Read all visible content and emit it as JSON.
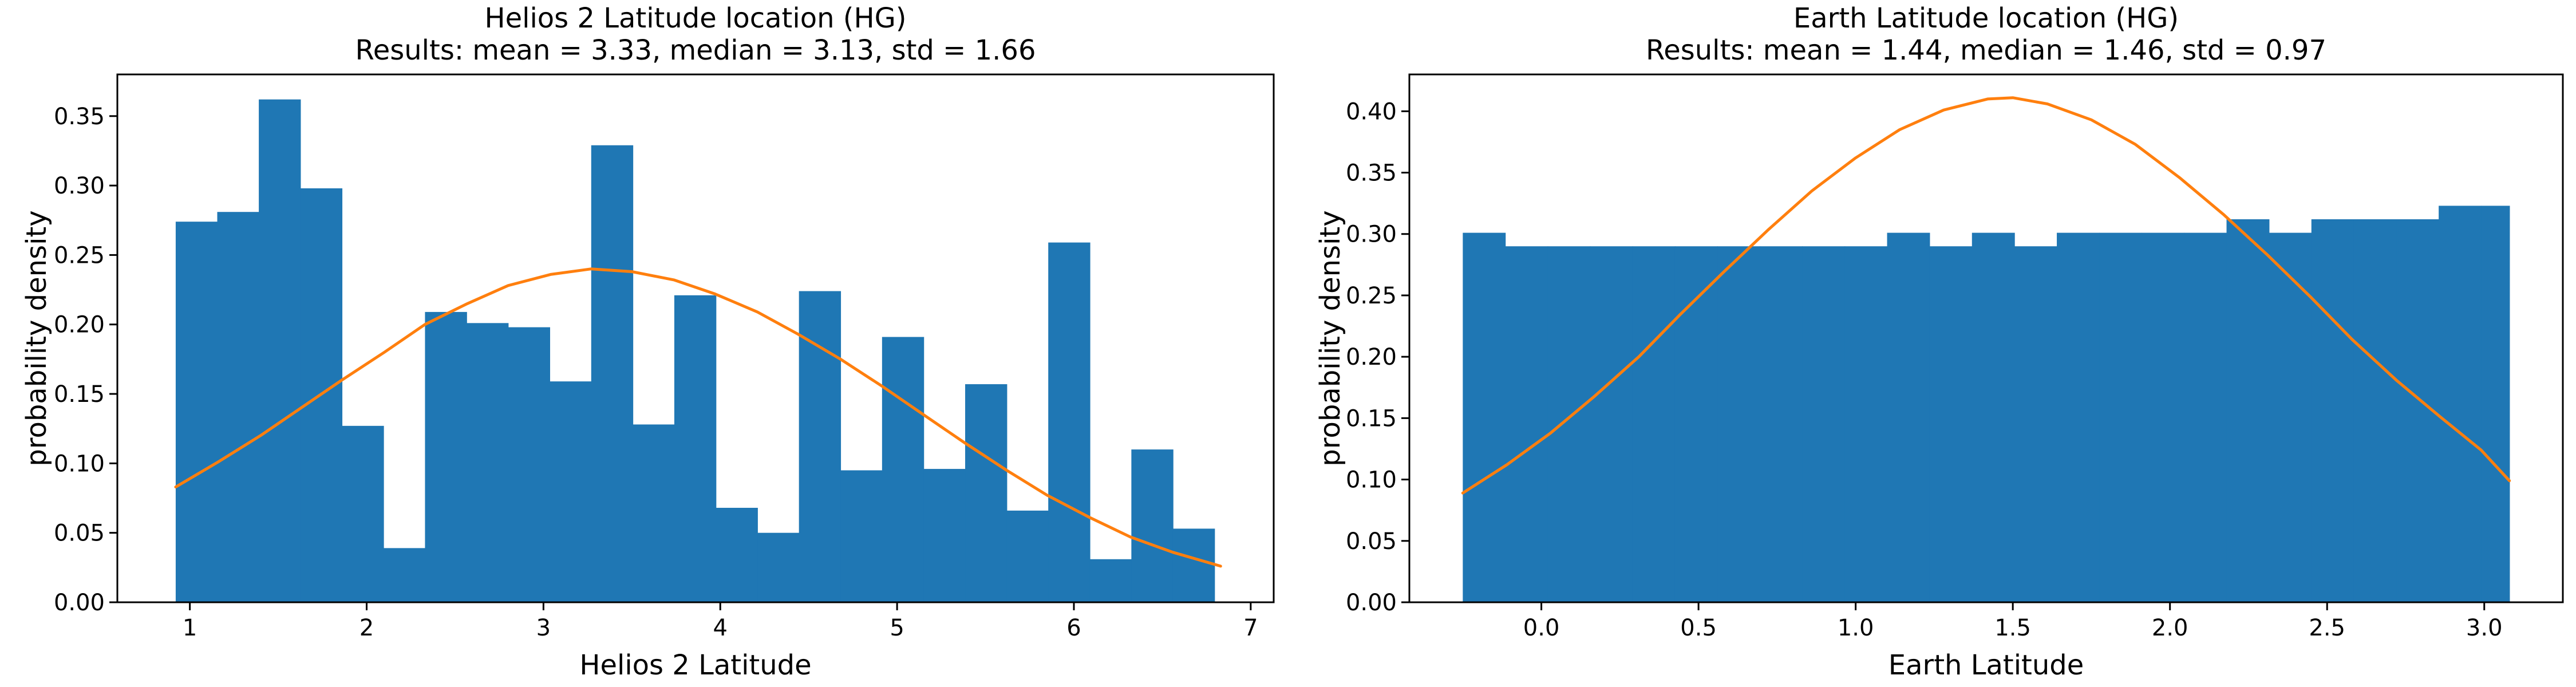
{
  "figure": {
    "background": "#ffffff"
  },
  "chart_data": [
    {
      "type": "bar",
      "title": "Helios 2 Latitude location (HG)",
      "subtitle": "Results: mean = 3.33, median = 3.13, std = 1.66",
      "xlabel": "Helios 2 Latitude",
      "ylabel": "probability density",
      "xlim": [
        0.59,
        7.13
      ],
      "ylim": [
        0,
        0.38
      ],
      "xticks": [
        1,
        2,
        3,
        4,
        5,
        6,
        7
      ],
      "xtick_labels": [
        "1",
        "2",
        "3",
        "4",
        "5",
        "6",
        "7"
      ],
      "yticks": [
        0,
        0.05,
        0.1,
        0.15,
        0.2,
        0.25,
        0.3,
        0.35
      ],
      "ytick_labels": [
        "0.00",
        "0.05",
        "0.10",
        "0.15",
        "0.20",
        "0.25",
        "0.30",
        "0.35"
      ],
      "grid": false,
      "bar_color": "#1f77b4",
      "curve_color": "#ff7f0e",
      "histogram": {
        "bin_edges": [
          0.92,
          1.155,
          1.39,
          1.625,
          1.86,
          2.095,
          2.33,
          2.565,
          2.8,
          3.035,
          3.27,
          3.505,
          3.74,
          3.975,
          4.21,
          4.445,
          4.68,
          4.915,
          5.15,
          5.385,
          5.62,
          5.855,
          6.09,
          6.325,
          6.56,
          6.795
        ],
        "densities": [
          0.274,
          0.281,
          0.362,
          0.298,
          0.127,
          0.039,
          0.209,
          0.201,
          0.198,
          0.159,
          0.329,
          0.128,
          0.221,
          0.068,
          0.05,
          0.224,
          0.095,
          0.191,
          0.096,
          0.157,
          0.066,
          0.259,
          0.031,
          0.11,
          0.053
        ]
      },
      "fit": {
        "x": [
          0.92,
          1.16,
          1.4,
          1.63,
          1.86,
          2.1,
          2.33,
          2.57,
          2.8,
          3.04,
          3.27,
          3.5,
          3.74,
          3.97,
          4.21,
          4.44,
          4.68,
          4.91,
          5.15,
          5.38,
          5.62,
          5.85,
          6.09,
          6.32,
          6.56,
          6.83
        ],
        "y": [
          0.083,
          0.101,
          0.12,
          0.14,
          0.16,
          0.18,
          0.2,
          0.215,
          0.228,
          0.236,
          0.24,
          0.238,
          0.232,
          0.222,
          0.209,
          0.193,
          0.175,
          0.156,
          0.135,
          0.115,
          0.095,
          0.077,
          0.061,
          0.047,
          0.036,
          0.026
        ]
      }
    },
    {
      "type": "bar",
      "title": "Earth Latitude location (HG)",
      "subtitle": "Results: mean = 1.44, median = 1.46, std = 0.97",
      "xlabel": "Earth Latitude",
      "ylabel": "probability density",
      "xlim": [
        -0.42,
        3.25
      ],
      "ylim": [
        0,
        0.43
      ],
      "xticks": [
        0,
        0.5,
        1,
        1.5,
        2,
        2.5,
        3
      ],
      "xtick_labels": [
        "0.0",
        "0.5",
        "1.0",
        "1.5",
        "2.0",
        "2.5",
        "3.0"
      ],
      "yticks": [
        0,
        0.05,
        0.1,
        0.15,
        0.2,
        0.25,
        0.3,
        0.35,
        0.4
      ],
      "ytick_labels": [
        "0.00",
        "0.05",
        "0.10",
        "0.15",
        "0.20",
        "0.25",
        "0.30",
        "0.35",
        "0.40"
      ],
      "grid": false,
      "bar_color": "#1f77b4",
      "curve_color": "#ff7f0e",
      "histogram": {
        "bin_edges": [
          -0.25,
          -0.115,
          0.02,
          0.155,
          0.29,
          0.425,
          0.56,
          0.695,
          0.83,
          0.965,
          1.1,
          1.235,
          1.37,
          1.505,
          1.64,
          1.775,
          1.91,
          2.045,
          2.18,
          2.315,
          2.45,
          2.585,
          2.72,
          2.855,
          2.99,
          3.08
        ],
        "densities": [
          0.301,
          0.29,
          0.29,
          0.29,
          0.29,
          0.29,
          0.29,
          0.29,
          0.29,
          0.29,
          0.301,
          0.29,
          0.301,
          0.29,
          0.301,
          0.301,
          0.301,
          0.301,
          0.312,
          0.301,
          0.312,
          0.312,
          0.312,
          0.323,
          0.323
        ]
      },
      "fit": {
        "x": [
          -0.25,
          -0.11,
          0.03,
          0.17,
          0.31,
          0.44,
          0.58,
          0.72,
          0.86,
          1.0,
          1.14,
          1.28,
          1.42,
          1.5,
          1.61,
          1.75,
          1.89,
          2.03,
          2.17,
          2.31,
          2.45,
          2.58,
          2.72,
          2.86,
          2.99,
          3.08
        ],
        "y": [
          0.089,
          0.112,
          0.138,
          0.168,
          0.2,
          0.234,
          0.269,
          0.303,
          0.335,
          0.362,
          0.385,
          0.401,
          0.41,
          0.411,
          0.406,
          0.393,
          0.373,
          0.346,
          0.316,
          0.283,
          0.248,
          0.214,
          0.181,
          0.151,
          0.124,
          0.099
        ]
      }
    }
  ]
}
